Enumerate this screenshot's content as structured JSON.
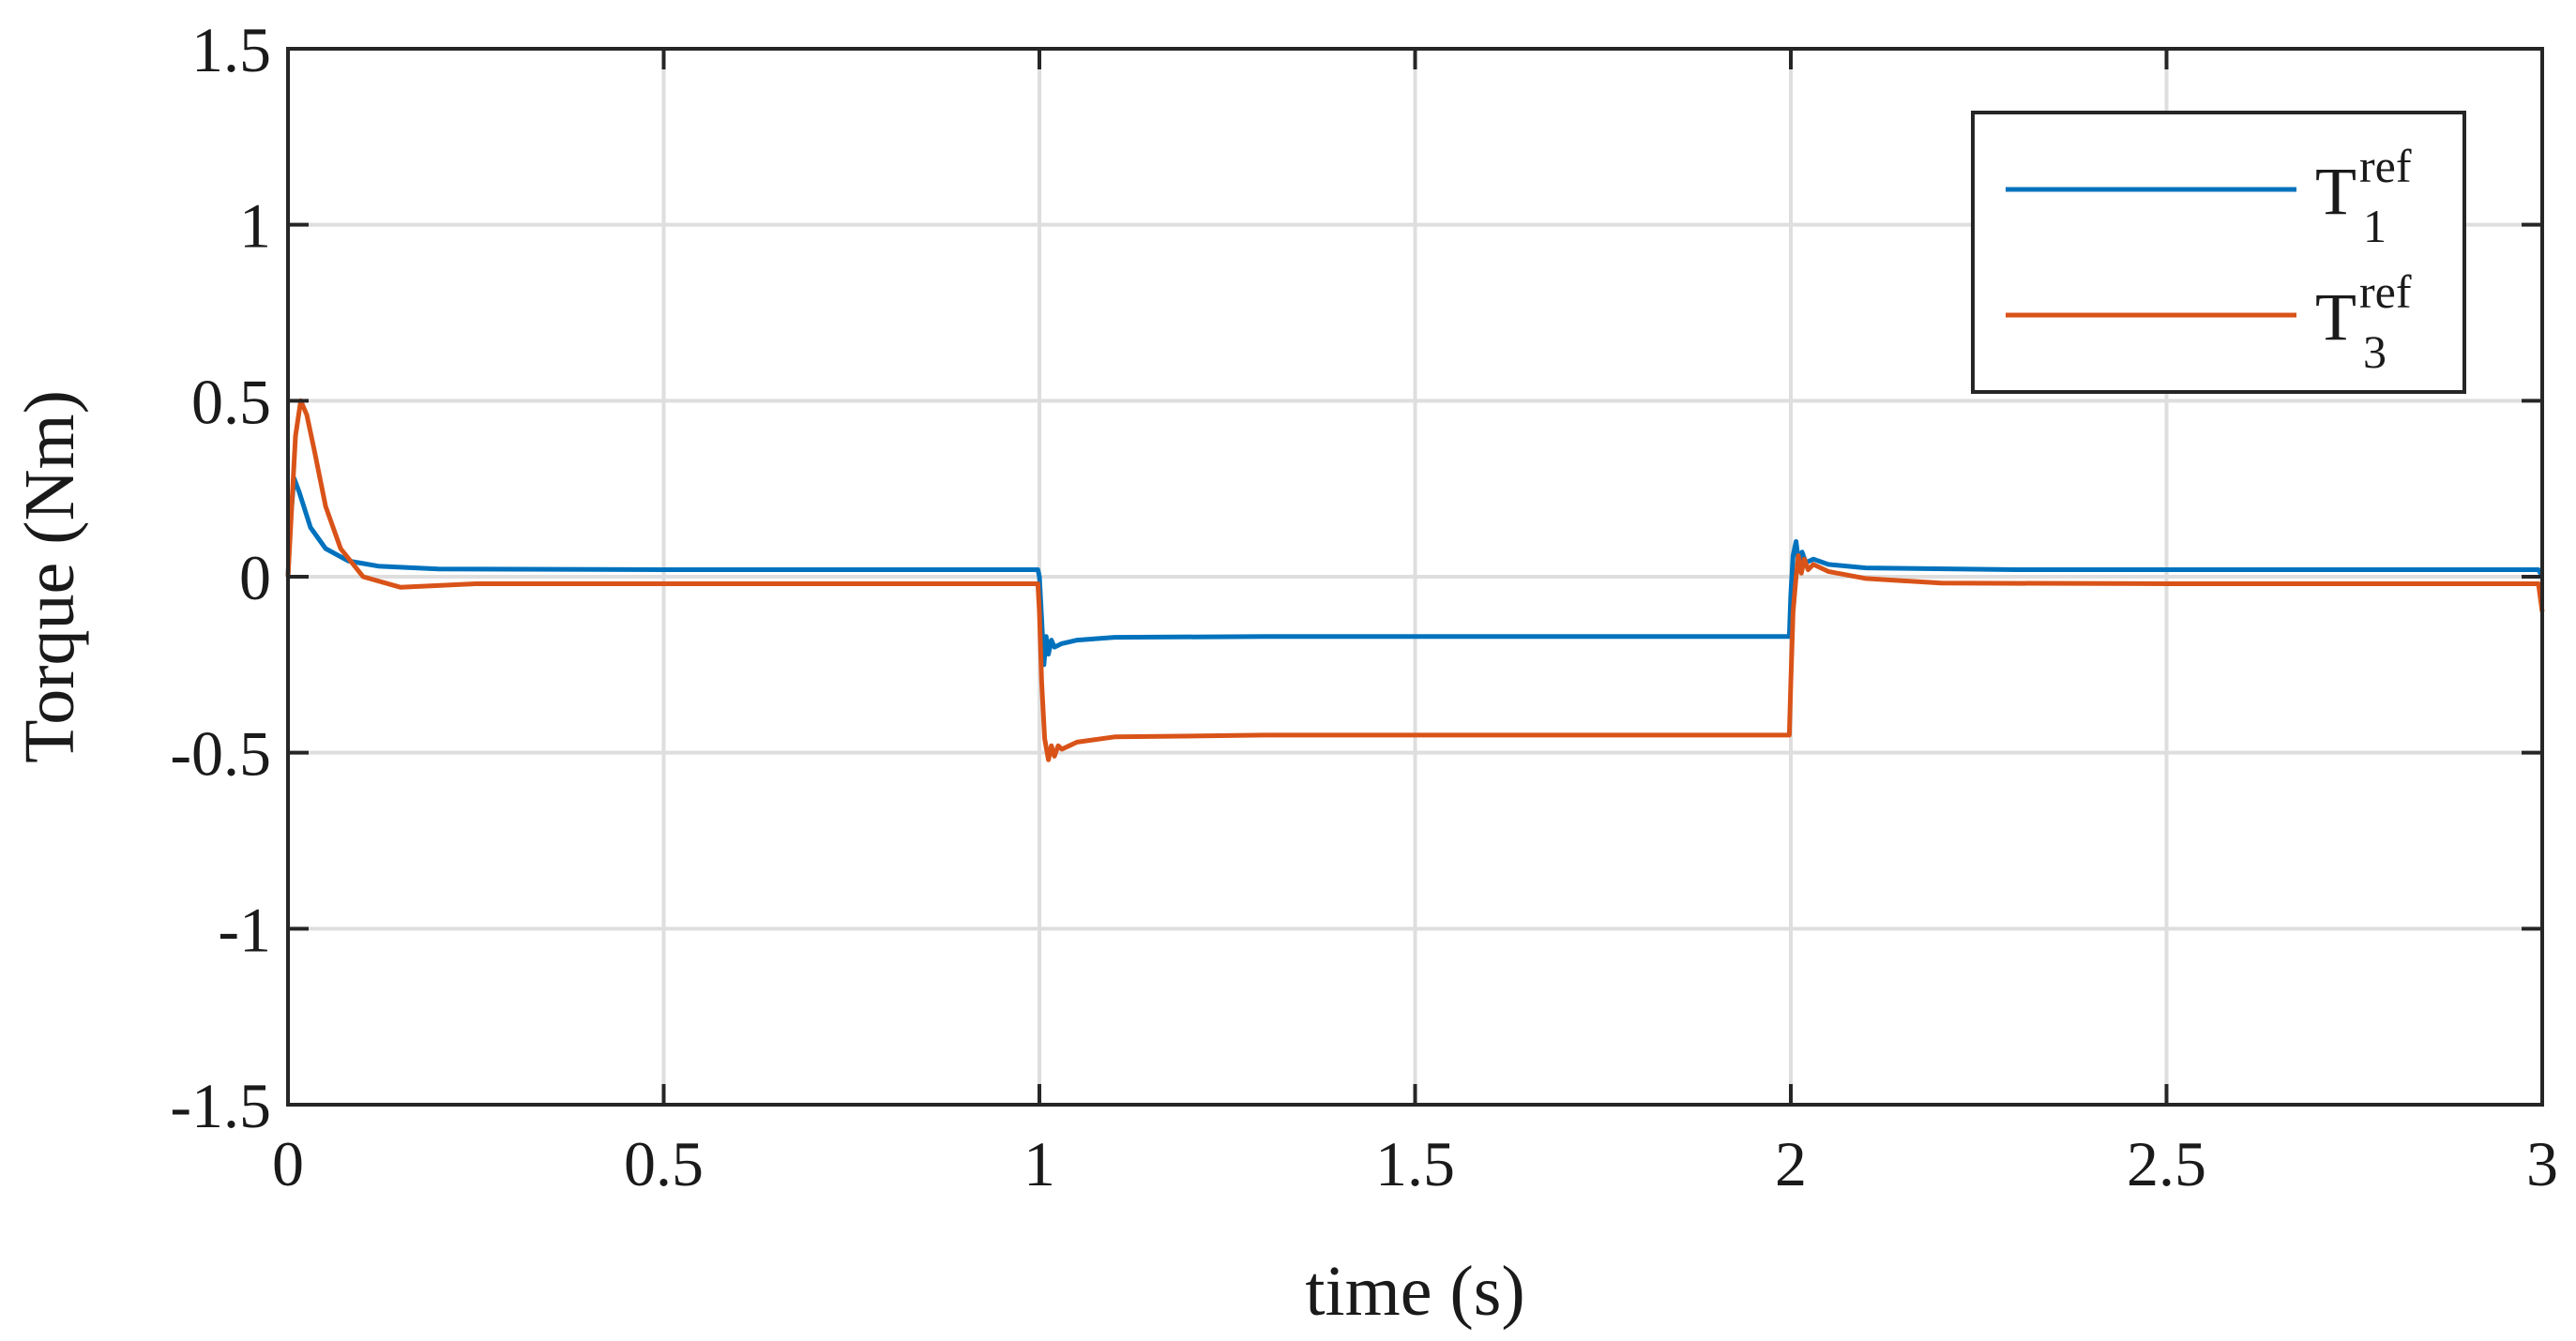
{
  "chart_data": {
    "type": "line",
    "title": "",
    "xlabel": "time (s)",
    "ylabel": "Torque (Nm)",
    "xlim": [
      0,
      3
    ],
    "ylim": [
      -1.5,
      1.5
    ],
    "xticks": [
      0,
      0.5,
      1,
      1.5,
      2,
      2.5,
      3
    ],
    "xtick_labels": [
      "0",
      "0.5",
      "1",
      "1.5",
      "2",
      "2.5",
      "3"
    ],
    "yticks": [
      1.5,
      1,
      0.5,
      0,
      -0.5,
      -1,
      -1.5
    ],
    "ytick_labels": [
      "1.5",
      "1",
      "0.5",
      "0",
      "-0.5",
      "-1",
      "-1.5"
    ],
    "grid": true,
    "legend_position": "top-right",
    "series": [
      {
        "name": "T1ref",
        "label_main": "T",
        "label_sub": "1",
        "label_sup": "ref",
        "color": "#0072BD",
        "points": [
          [
            0,
            0
          ],
          [
            0.003,
            0.15
          ],
          [
            0.008,
            0.28
          ],
          [
            0.015,
            0.24
          ],
          [
            0.03,
            0.14
          ],
          [
            0.05,
            0.08
          ],
          [
            0.08,
            0.045
          ],
          [
            0.12,
            0.03
          ],
          [
            0.2,
            0.022
          ],
          [
            0.5,
            0.02
          ],
          [
            0.998,
            0.02
          ],
          [
            1.0,
            0.0
          ],
          [
            1.003,
            -0.12
          ],
          [
            1.006,
            -0.25
          ],
          [
            1.009,
            -0.17
          ],
          [
            1.012,
            -0.22
          ],
          [
            1.016,
            -0.18
          ],
          [
            1.02,
            -0.2
          ],
          [
            1.03,
            -0.19
          ],
          [
            1.05,
            -0.18
          ],
          [
            1.1,
            -0.172
          ],
          [
            1.3,
            -0.17
          ],
          [
            1.998,
            -0.17
          ],
          [
            2.0,
            -0.05
          ],
          [
            2.003,
            0.06
          ],
          [
            2.007,
            0.1
          ],
          [
            2.011,
            0.03
          ],
          [
            2.015,
            0.07
          ],
          [
            2.02,
            0.04
          ],
          [
            2.03,
            0.05
          ],
          [
            2.05,
            0.035
          ],
          [
            2.1,
            0.025
          ],
          [
            2.3,
            0.02
          ],
          [
            2.995,
            0.02
          ],
          [
            3.0,
            0.0
          ]
        ]
      },
      {
        "name": "T3ref",
        "label_main": "T",
        "label_sub": "3",
        "label_sup": "ref",
        "color": "#D95319",
        "points": [
          [
            0,
            0
          ],
          [
            0.005,
            0.2
          ],
          [
            0.01,
            0.4
          ],
          [
            0.017,
            0.5
          ],
          [
            0.025,
            0.46
          ],
          [
            0.035,
            0.36
          ],
          [
            0.05,
            0.2
          ],
          [
            0.07,
            0.08
          ],
          [
            0.1,
            0.0
          ],
          [
            0.15,
            -0.03
          ],
          [
            0.25,
            -0.02
          ],
          [
            0.5,
            -0.02
          ],
          [
            0.998,
            -0.02
          ],
          [
            1.0,
            -0.1
          ],
          [
            1.003,
            -0.3
          ],
          [
            1.007,
            -0.46
          ],
          [
            1.012,
            -0.52
          ],
          [
            1.016,
            -0.48
          ],
          [
            1.02,
            -0.51
          ],
          [
            1.025,
            -0.48
          ],
          [
            1.03,
            -0.49
          ],
          [
            1.05,
            -0.47
          ],
          [
            1.1,
            -0.455
          ],
          [
            1.3,
            -0.45
          ],
          [
            1.998,
            -0.45
          ],
          [
            2.0,
            -0.3
          ],
          [
            2.003,
            -0.1
          ],
          [
            2.007,
            0.0
          ],
          [
            2.01,
            0.06
          ],
          [
            2.014,
            0.01
          ],
          [
            2.018,
            0.05
          ],
          [
            2.023,
            0.02
          ],
          [
            2.03,
            0.035
          ],
          [
            2.05,
            0.015
          ],
          [
            2.1,
            -0.005
          ],
          [
            2.2,
            -0.018
          ],
          [
            2.5,
            -0.02
          ],
          [
            2.995,
            -0.02
          ],
          [
            3.0,
            -0.1
          ]
        ]
      }
    ]
  }
}
